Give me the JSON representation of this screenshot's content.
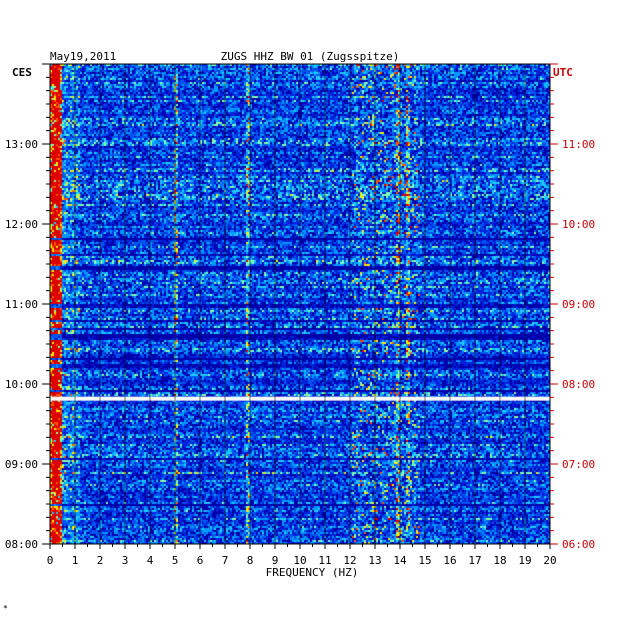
{
  "chart_data": {
    "type": "heatmap",
    "date": "May19,2011",
    "title": "ZUGS HHZ BW 01 (Zugsspitze)",
    "left_axis_label": "CES",
    "right_axis_label": "UTC",
    "xlabel": "FREQUENCY (HZ)",
    "x_ticks": [
      "0",
      "1",
      "2",
      "3",
      "4",
      "5",
      "6",
      "7",
      "8",
      "9",
      "10",
      "11",
      "12",
      "13",
      "14",
      "15",
      "16",
      "17",
      "18",
      "19",
      "20"
    ],
    "xlim": [
      0,
      20
    ],
    "left_time_ticks": [
      "13:00",
      "12:00",
      "11:00",
      "10:00",
      "09:00",
      "08:00"
    ],
    "right_time_ticks": [
      "11:00",
      "10:00",
      "09:00",
      "08:00",
      "07:00",
      "06:00"
    ],
    "time_range_ces": [
      "08:00",
      "14:00"
    ],
    "gap_time_ces": "09:49",
    "colormap": [
      "#0000aa",
      "#0022dd",
      "#0055ee",
      "#0099ff",
      "#22ccff",
      "#88ffaa",
      "#ffee00",
      "#ff5500",
      "#dd0000"
    ],
    "prominent_lines_hz": [
      0.1,
      0.3,
      5.0,
      7.9,
      13.9,
      14.3
    ]
  },
  "footer": {
    "mark": "*"
  },
  "colors": {
    "left_axis": "#000000",
    "right_axis": "#cc0000"
  }
}
